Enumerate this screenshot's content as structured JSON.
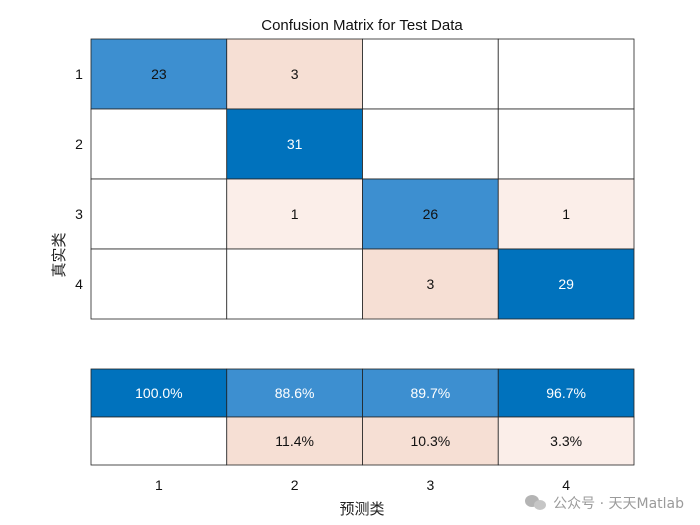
{
  "chart_data": {
    "type": "heatmap",
    "title": "Confusion Matrix for Test Data",
    "xlabel": "预测类",
    "ylabel": "真实类",
    "row_labels": [
      "1",
      "2",
      "3",
      "4"
    ],
    "col_labels": [
      "1",
      "2",
      "3",
      "4"
    ],
    "matrix": [
      [
        23,
        3,
        0,
        0
      ],
      [
        0,
        31,
        0,
        0
      ],
      [
        0,
        1,
        26,
        1
      ],
      [
        0,
        0,
        3,
        29
      ]
    ],
    "column_summary": {
      "correct": [
        "100.0%",
        "88.6%",
        "89.7%",
        "96.7%"
      ],
      "incorrect": [
        "",
        "11.4%",
        "10.3%",
        "3.3%"
      ]
    },
    "colors": {
      "diag_dark": "#0072BD",
      "diag_mid": "#3D8FD0",
      "offdiag_mid": "#F6DFD4",
      "offdiag_light": "#FBEEE9",
      "empty": "#FFFFFF"
    }
  },
  "watermark": {
    "text": "公众号 · 天天Matlab",
    "icon": "wechat-icon"
  }
}
